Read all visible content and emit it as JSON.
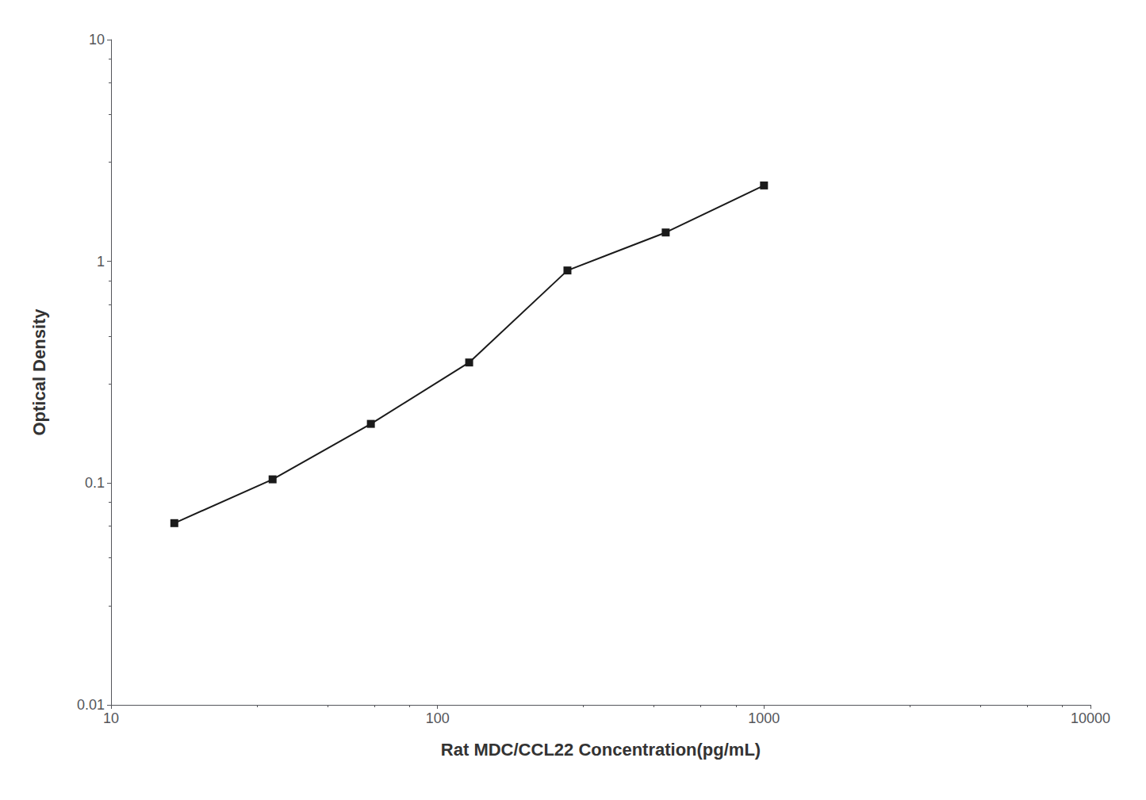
{
  "chart_data": {
    "type": "line",
    "x": [
      15.625,
      31.25,
      62.5,
      125,
      250,
      500,
      1000
    ],
    "values": [
      0.066,
      0.104,
      0.185,
      0.35,
      0.91,
      1.35,
      2.2
    ],
    "xlabel": "Rat MDC/CCL22 Concentration(pg/mL)",
    "ylabel": "Optical Density",
    "xlim": [
      10,
      10000
    ],
    "xticks": [
      10,
      100,
      1000,
      10000
    ],
    "ylim": [
      0.01,
      10
    ],
    "yticks": [
      0.01,
      0.1,
      1,
      10
    ],
    "log": true,
    "grid": false,
    "color": "#1a1a1a",
    "marker": "square"
  }
}
